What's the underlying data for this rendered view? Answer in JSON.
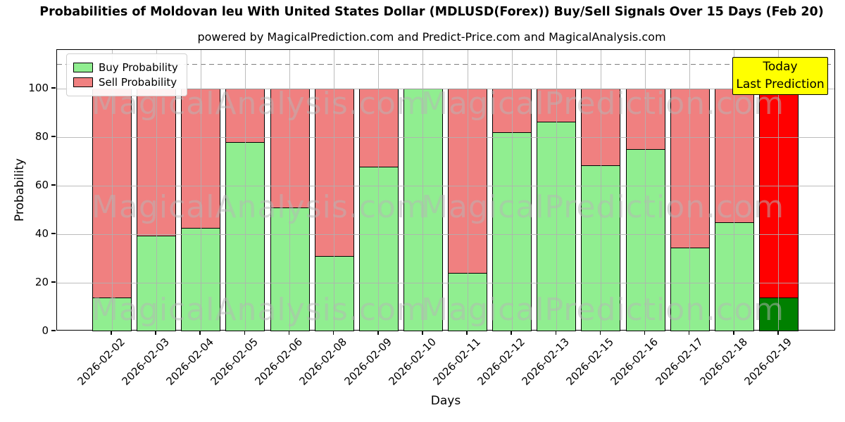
{
  "chart": {
    "title": "Probabilities of Moldovan leu With United States Dollar (MDLUSD(Forex)) Buy/Sell Signals Over 15 Days (Feb 20)",
    "subtitle": "powered by MagicalPrediction.com and Predict-Price.com and MagicalAnalysis.com",
    "x_axis_title": "Days",
    "y_axis_title": "Probability",
    "legend": {
      "buy_label": "Buy Probability",
      "sell_label": "Sell Probability"
    },
    "annotation": {
      "line1": "Today",
      "line2": "Last Prediction"
    },
    "watermark_left": "MagicalAnalysis.com",
    "watermark_right": "MagicalPrediction.com"
  },
  "colors": {
    "buy": "#90EE90",
    "sell": "#F08080",
    "highlight_buy": "#008000",
    "highlight_sell": "#FF0000",
    "annotation_bg": "#FFFF00",
    "grid": "#B0B0B0",
    "dashed_line": "#7F7F7F"
  },
  "chart_data": {
    "type": "bar",
    "stacked": true,
    "title": "Probabilities of Moldovan leu With United States Dollar (MDLUSD(Forex)) Buy/Sell Signals Over 15 Days (Feb 20)",
    "xlabel": "Days",
    "ylabel": "Probability",
    "categories": [
      "2026-02-02",
      "2026-02-03",
      "2026-02-04",
      "2026-02-05",
      "2026-02-06",
      "2026-02-08",
      "2026-02-09",
      "2026-02-10",
      "2026-02-11",
      "2026-02-12",
      "2026-02-13",
      "2026-02-15",
      "2026-02-16",
      "2026-02-17",
      "2026-02-18",
      "2026-02-19"
    ],
    "series": [
      {
        "name": "Buy Probability",
        "color": "#90EE90",
        "values": [
          14,
          39.5,
          42.5,
          78,
          51,
          31,
          68,
          100,
          24,
          82,
          86.5,
          68.5,
          75,
          34.5,
          45,
          14
        ]
      },
      {
        "name": "Sell Probability",
        "color": "#F08080",
        "values": [
          86,
          60.5,
          57.5,
          22,
          49,
          69,
          32,
          0,
          76,
          18,
          13.5,
          31.5,
          25,
          65.5,
          55,
          86
        ]
      }
    ],
    "highlight_last_bar": {
      "buy_color": "#008000",
      "sell_color": "#FF0000",
      "note": "Today / Last Prediction"
    },
    "ylim": [
      0,
      116
    ],
    "yticks": [
      0,
      20,
      40,
      60,
      80,
      100
    ],
    "dashed_threshold_y": 110,
    "grid": true,
    "legend_position": "upper left"
  }
}
